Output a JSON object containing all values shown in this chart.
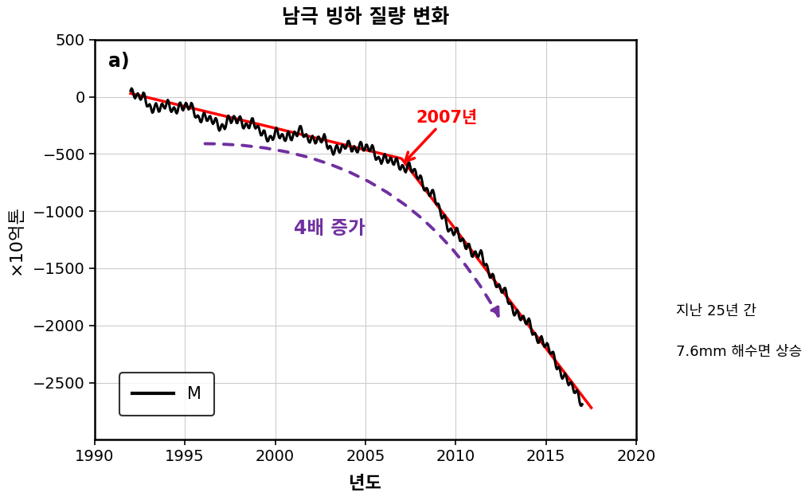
{
  "title": "남극 빙하 질량 변화",
  "xlabel": "년도",
  "ylabel": "×10억톤",
  "xlim": [
    1990,
    2020
  ],
  "ylim": [
    -3000,
    500
  ],
  "yticks": [
    500,
    0,
    -500,
    -1000,
    -1500,
    -2000,
    -2500
  ],
  "xticks": [
    1990,
    1995,
    2000,
    2005,
    2010,
    2015,
    2020
  ],
  "panel_label": "a)",
  "annotation_year": "2007년",
  "annotation_4x": "4배 증가",
  "right_text_line1": "지난 25년 간",
  "right_text_line2": "7.6mm 해수면 상승",
  "legend_label": "M",
  "bg_color": "#ffffff",
  "grid_color": "#cccccc",
  "line_black_color": "#000000",
  "line_red_color": "#ff0000",
  "arrow_color": "#7030a0",
  "annotation_color_red": "#ff0000",
  "annotation_color_purple": "#7030a0",
  "title_fontsize": 18,
  "label_fontsize": 16,
  "tick_fontsize": 14,
  "annotation_fontsize": 15,
  "panel_fontsize": 17
}
